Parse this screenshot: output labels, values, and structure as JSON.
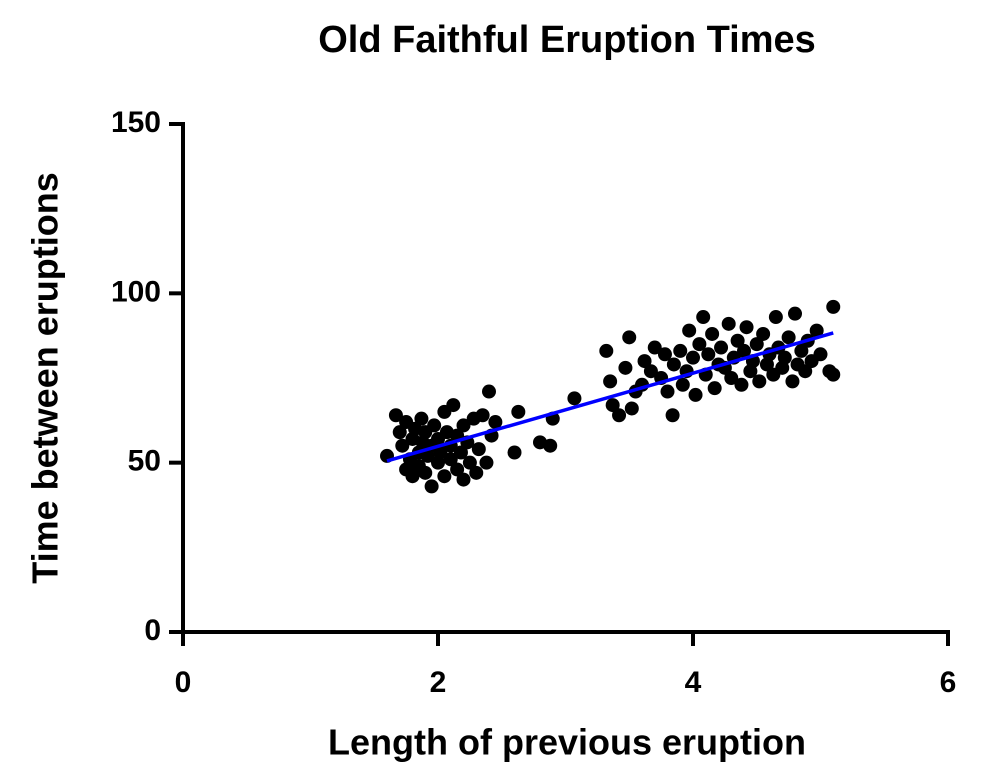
{
  "chart_data": {
    "type": "scatter",
    "title": "Old Faithful Eruption Times",
    "x_label": "Length of previous eruption",
    "y_label": "Time between eruptions",
    "xlim": [
      0,
      6
    ],
    "xticks": [
      0,
      2,
      4,
      6
    ],
    "ylim": [
      0,
      150
    ],
    "yticks": [
      0,
      50,
      100,
      150
    ],
    "series": [
      {
        "color": "#000000",
        "x": [
          1.6,
          1.67,
          1.7,
          1.72,
          1.75,
          1.75,
          1.78,
          1.8,
          1.8,
          1.82,
          1.85,
          1.85,
          1.87,
          1.88,
          1.9,
          1.9,
          1.92,
          1.95,
          1.95,
          1.97,
          2.0,
          2.0,
          2.02,
          2.05,
          2.05,
          2.07,
          2.1,
          2.1,
          2.12,
          2.15,
          2.15,
          2.18,
          2.2,
          2.2,
          2.23,
          2.25,
          2.28,
          2.3,
          2.32,
          2.35,
          2.38,
          2.4,
          2.42,
          2.45,
          2.6,
          2.63,
          2.8,
          2.88,
          2.9,
          3.07,
          3.32,
          3.35,
          3.37,
          3.42,
          3.47,
          3.5,
          3.52,
          3.55,
          3.6,
          3.62,
          3.67,
          3.7,
          3.75,
          3.78,
          3.8,
          3.84,
          3.85,
          3.9,
          3.92,
          3.95,
          3.97,
          4.0,
          4.02,
          4.05,
          4.08,
          4.1,
          4.12,
          4.15,
          4.17,
          4.2,
          4.22,
          4.25,
          4.28,
          4.3,
          4.32,
          4.35,
          4.38,
          4.4,
          4.42,
          4.45,
          4.47,
          4.5,
          4.52,
          4.55,
          4.58,
          4.6,
          4.63,
          4.65,
          4.67,
          4.7,
          4.72,
          4.75,
          4.78,
          4.8,
          4.82,
          4.85,
          4.88,
          4.9,
          4.93,
          4.97,
          5.0,
          5.07,
          5.1,
          5.1
        ],
        "values": [
          52,
          64,
          59,
          55,
          48,
          62,
          51,
          57,
          46,
          60,
          53,
          49,
          63,
          56,
          47,
          59,
          52,
          43,
          55,
          61,
          50,
          57,
          53,
          46,
          65,
          59,
          51,
          55,
          67,
          48,
          58,
          53,
          45,
          61,
          56,
          50,
          63,
          47,
          54,
          64,
          50,
          71,
          58,
          62,
          53,
          65,
          56,
          55,
          63,
          69,
          83,
          74,
          67,
          64,
          78,
          87,
          66,
          71,
          73,
          80,
          77,
          84,
          75,
          82,
          71,
          64,
          79,
          83,
          73,
          77,
          89,
          81,
          70,
          85,
          93,
          76,
          82,
          88,
          72,
          79,
          84,
          78,
          91,
          75,
          81,
          86,
          73,
          83,
          90,
          77,
          80,
          85,
          74,
          88,
          79,
          82,
          76,
          93,
          84,
          78,
          81,
          87,
          74,
          94,
          79,
          83,
          77,
          86,
          80,
          89,
          82,
          77,
          76,
          96
        ]
      },
      {
        "type": "line",
        "color": "#0000ff",
        "x": [
          1.6,
          5.1
        ],
        "values": [
          50.5,
          88.3
        ]
      }
    ]
  }
}
